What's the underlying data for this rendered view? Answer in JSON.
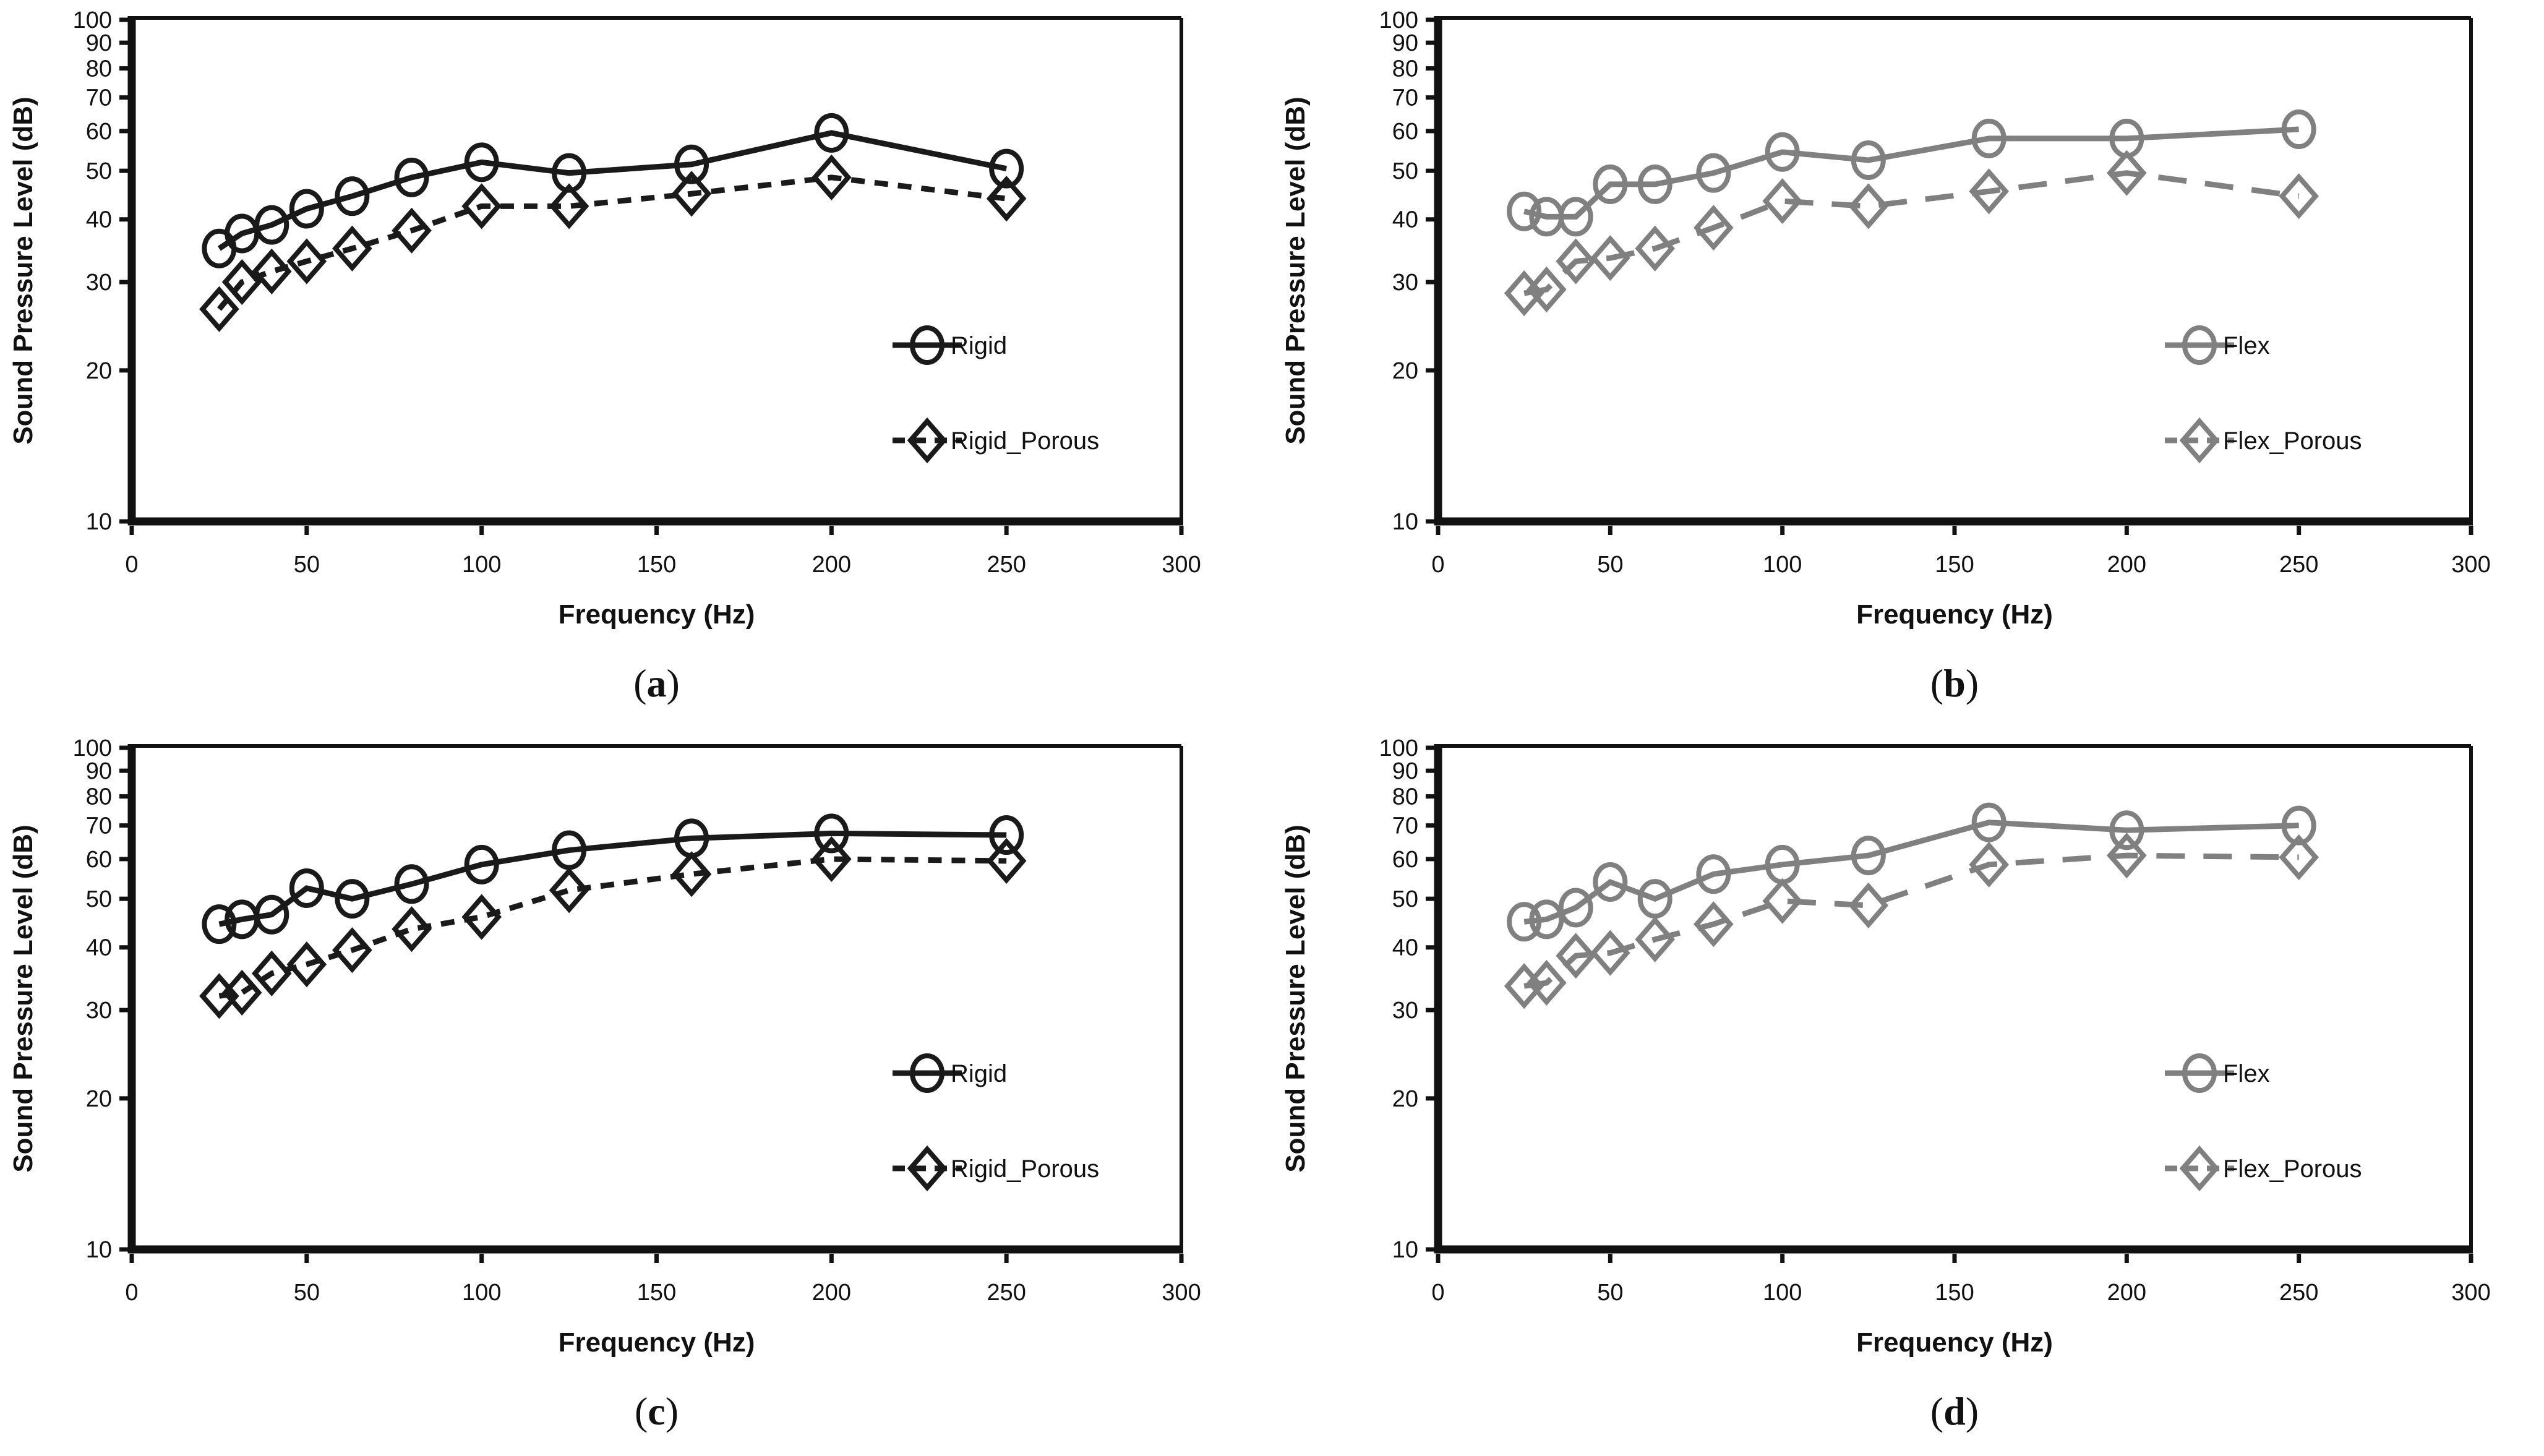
{
  "figure": {
    "description": "Four-panel sound pressure level comparison figure",
    "panels": [
      "(a)",
      "(b)",
      "(c)",
      "(d)"
    ]
  },
  "chart_data": [
    {
      "id": "a",
      "type": "line",
      "sublabel_open": "(",
      "sublabel_letter": "a",
      "sublabel_close": ")",
      "xlabel": "Frequency (Hz)",
      "ylabel": "Sound Pressure Level (dB)",
      "x_ticks": [
        0,
        50,
        100,
        150,
        200,
        250,
        300
      ],
      "y_ticks": [
        100,
        90,
        80,
        70,
        60,
        50,
        40,
        30,
        20,
        10
      ],
      "xlim": [
        0,
        300
      ],
      "ylim": [
        10,
        100
      ],
      "y_scale": "log",
      "grid": false,
      "legend_position": "inside-right",
      "color": "#1a1a1a",
      "x": [
        25,
        31.5,
        40,
        50,
        63,
        80,
        100,
        125,
        160,
        200,
        250
      ],
      "series": [
        {
          "name": "Rigid",
          "marker": "circle",
          "line_style": "solid",
          "values": [
            35,
            37.5,
            39,
            42,
            44.5,
            48.5,
            52,
            49.5,
            51.5,
            59.5,
            50.5
          ]
        },
        {
          "name": "Rigid_Porous",
          "marker": "diamond",
          "line_style": "dashed",
          "values": [
            26.5,
            30,
            31.5,
            33,
            35,
            38,
            42.5,
            42.5,
            45,
            48.5,
            44
          ]
        }
      ]
    },
    {
      "id": "b",
      "type": "line",
      "sublabel_open": "(",
      "sublabel_letter": "b",
      "sublabel_close": ")",
      "xlabel": "Frequency (Hz)",
      "ylabel": "Sound Pressure Level (dB)",
      "x_ticks": [
        0,
        50,
        100,
        150,
        200,
        250,
        300
      ],
      "y_ticks": [
        100,
        90,
        80,
        70,
        60,
        50,
        40,
        30,
        20,
        10
      ],
      "xlim": [
        0,
        300
      ],
      "ylim": [
        10,
        100
      ],
      "y_scale": "log",
      "grid": false,
      "legend_position": "inside-right",
      "color": "#808080",
      "x": [
        25,
        31.5,
        40,
        50,
        63,
        80,
        100,
        125,
        160,
        200,
        250
      ],
      "series": [
        {
          "name": "Flex",
          "marker": "circle",
          "line_style": "solid",
          "values": [
            41.5,
            40.5,
            40.5,
            47,
            47,
            49.5,
            54.5,
            52.5,
            58,
            58,
            60.5
          ]
        },
        {
          "name": "Flex_Porous",
          "marker": "diamond",
          "line_style": "dashed",
          "values": [
            28.5,
            29,
            33,
            33.5,
            35,
            38.5,
            43.5,
            42.5,
            45.5,
            49.5,
            44.5
          ]
        }
      ]
    },
    {
      "id": "c",
      "type": "line",
      "sublabel_open": "(",
      "sublabel_letter": "c",
      "sublabel_close": ")",
      "xlabel": "Frequency (Hz)",
      "ylabel": "Sound Pressure Level (dB)",
      "x_ticks": [
        0,
        50,
        100,
        150,
        200,
        250,
        300
      ],
      "y_ticks": [
        100,
        90,
        80,
        70,
        60,
        50,
        40,
        30,
        20,
        10
      ],
      "xlim": [
        0,
        300
      ],
      "ylim": [
        10,
        100
      ],
      "y_scale": "log",
      "grid": false,
      "legend_position": "inside-right",
      "color": "#1a1a1a",
      "x": [
        25,
        31.5,
        40,
        50,
        63,
        80,
        100,
        125,
        160,
        200,
        250
      ],
      "series": [
        {
          "name": "Rigid",
          "marker": "circle",
          "line_style": "solid",
          "values": [
            44.5,
            45.5,
            46.5,
            52.5,
            50,
            53.5,
            58.5,
            62.5,
            66,
            67.5,
            67
          ]
        },
        {
          "name": "Rigid_Porous",
          "marker": "diamond",
          "line_style": "dashed",
          "values": [
            32,
            32.5,
            35.5,
            37,
            39.5,
            43.5,
            46,
            52,
            56,
            60,
            59.5
          ]
        }
      ]
    },
    {
      "id": "d",
      "type": "line",
      "sublabel_open": "(",
      "sublabel_letter": "d",
      "sublabel_close": ")",
      "xlabel": "Frequency (Hz)",
      "ylabel": "Sound Pressure Level (dB)",
      "x_ticks": [
        0,
        50,
        100,
        150,
        200,
        250,
        300
      ],
      "y_ticks": [
        100,
        90,
        80,
        70,
        60,
        50,
        40,
        30,
        20,
        10
      ],
      "xlim": [
        0,
        300
      ],
      "ylim": [
        10,
        100
      ],
      "y_scale": "log",
      "grid": false,
      "legend_position": "inside-right",
      "color": "#808080",
      "x": [
        25,
        31.5,
        40,
        50,
        63,
        80,
        100,
        125,
        160,
        200,
        250
      ],
      "series": [
        {
          "name": "Flex",
          "marker": "circle",
          "line_style": "solid",
          "values": [
            45,
            45.5,
            48,
            54,
            50,
            56,
            58.5,
            61,
            71,
            68.5,
            70
          ]
        },
        {
          "name": "Flex_Porous",
          "marker": "diamond",
          "line_style": "dashed",
          "values": [
            33.5,
            34,
            38.5,
            39,
            41.5,
            44.5,
            49.5,
            48.5,
            58.5,
            61,
            60.5
          ]
        }
      ]
    }
  ]
}
